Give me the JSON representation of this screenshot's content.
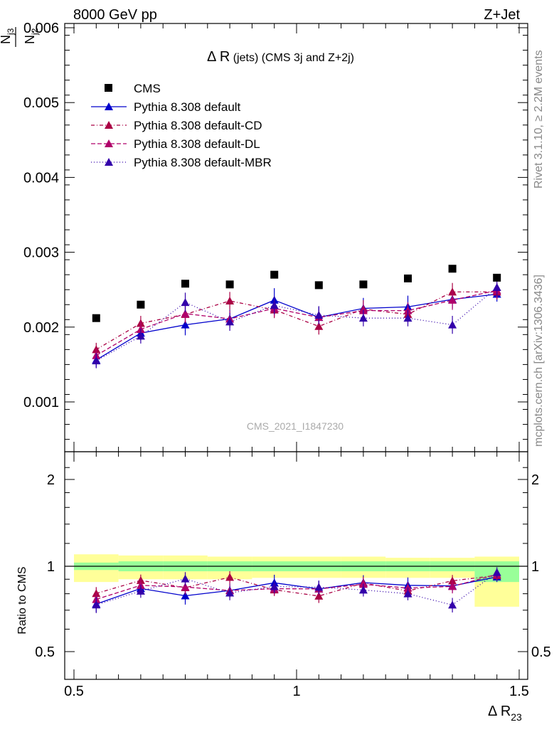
{
  "header": {
    "left": "8000 GeV pp",
    "right": "Z+Jet"
  },
  "side_labels": {
    "rivet": "Rivet 3.1.10, ≥ 2.2M events",
    "mcplots": "mcplots.cern.ch [arXiv:1306.3436]"
  },
  "watermark": "CMS_2021_I1847230",
  "chart_data": {
    "type": "scatter",
    "title_main": "Δ R",
    "title_rest": " (jets) (CMS 3j and Z+2j)",
    "ylabel_num": "N",
    "ylabel_num_sub": "j3",
    "ylabel_den": "N",
    "ylabel_den_sub": "j2",
    "xlabel": "Δ R",
    "xlabel_sub": "23",
    "ratio_ylabel": "Ratio to CMS",
    "xlim": [
      0.5,
      1.5
    ],
    "ylim": [
      0.0004,
      0.006
    ],
    "ratio_ylim": [
      0.4,
      2.2
    ],
    "x_ticks": [
      "0.5",
      "1",
      "1.5"
    ],
    "y_ticks": [
      "0.001",
      "0.002",
      "0.003",
      "0.004",
      "0.005",
      "0.006"
    ],
    "ratio_ticks": [
      "0.5",
      "1",
      "2"
    ],
    "x": [
      0.55,
      0.65,
      0.75,
      0.85,
      0.95,
      1.05,
      1.15,
      1.25,
      1.35,
      1.45
    ],
    "data": {
      "name": "CMS",
      "values": [
        0.00212,
        0.0023,
        0.00258,
        0.00257,
        0.0027,
        0.00256,
        0.00257,
        0.00265,
        0.00278,
        0.00266
      ]
    },
    "series": [
      {
        "name": "Pythia 8.308 default",
        "color": "#0000cc",
        "dash": "",
        "values": [
          0.00156,
          0.00192,
          0.00203,
          0.00211,
          0.00236,
          0.00213,
          0.00225,
          0.00227,
          0.00237,
          0.00244
        ],
        "errors": [
          0.0001,
          0.0001,
          0.00014,
          0.00012,
          0.00016,
          0.00014,
          0.00014,
          0.00015,
          0.00012,
          0.0001
        ]
      },
      {
        "name": "Pythia 8.308 default-CD",
        "color": "#aa0044",
        "dash": "5,3,1,3",
        "values": [
          0.0017,
          0.00205,
          0.00217,
          0.00235,
          0.00223,
          0.00201,
          0.00224,
          0.00217,
          0.00247,
          0.00247
        ],
        "errors": [
          9e-05,
          0.0001,
          0.00012,
          0.00012,
          0.00011,
          0.00011,
          0.00012,
          0.00011,
          0.00012,
          0.0001
        ]
      },
      {
        "name": "Pythia 8.308 default-DL",
        "color": "#b0006a",
        "dash": "6,3",
        "values": [
          0.00162,
          0.00197,
          0.00218,
          0.00211,
          0.00225,
          0.00213,
          0.00222,
          0.00222,
          0.00236,
          0.00249
        ],
        "errors": [
          9e-05,
          0.00011,
          0.00011,
          0.00011,
          0.00011,
          0.0001,
          0.00011,
          0.00011,
          0.00013,
          0.0001
        ]
      },
      {
        "name": "Pythia 8.308 default-MBR",
        "color": "#3300aa",
        "dash": "1,3",
        "values": [
          0.00155,
          0.00188,
          0.00233,
          0.00207,
          0.00229,
          0.00216,
          0.00212,
          0.00212,
          0.00203,
          0.00253
        ],
        "errors": [
          0.0001,
          0.0001,
          0.00013,
          0.00012,
          0.00012,
          0.00012,
          0.00011,
          0.00011,
          0.00012,
          0.00011
        ]
      }
    ],
    "ratio_bands": {
      "x_edges": [
        0.5,
        0.6,
        0.7,
        0.8,
        0.9,
        1.0,
        1.1,
        1.2,
        1.3,
        1.4,
        1.5
      ],
      "stat": [
        [
          0.97,
          1.03
        ],
        [
          0.96,
          1.04
        ],
        [
          0.96,
          1.04
        ],
        [
          0.96,
          1.04
        ],
        [
          0.96,
          1.04
        ],
        [
          0.96,
          1.04
        ],
        [
          0.96,
          1.04
        ],
        [
          0.96,
          1.04
        ],
        [
          0.96,
          1.04
        ],
        [
          0.88,
          1.04
        ]
      ],
      "total": [
        [
          0.88,
          1.1
        ],
        [
          0.9,
          1.09
        ],
        [
          0.9,
          1.09
        ],
        [
          0.9,
          1.08
        ],
        [
          0.91,
          1.08
        ],
        [
          0.91,
          1.08
        ],
        [
          0.91,
          1.08
        ],
        [
          0.91,
          1.07
        ],
        [
          0.91,
          1.07
        ],
        [
          0.72,
          1.08
        ]
      ],
      "stat_color": "#99ff99",
      "total_color": "#ffff99"
    }
  }
}
